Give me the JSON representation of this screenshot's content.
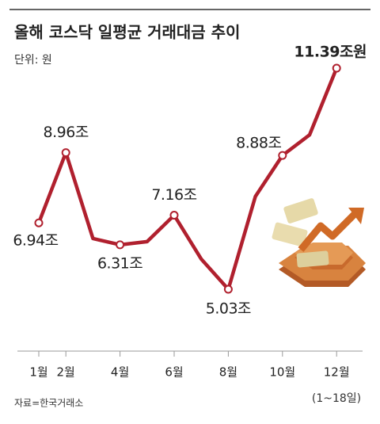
{
  "chart_data": {
    "type": "line",
    "title": "올해 코스닥 일평균 거래대금 추이",
    "subtitle": "단위: 원",
    "categories": [
      "1월",
      "2월",
      null,
      "4월",
      null,
      "6월",
      null,
      "8월",
      null,
      "10월",
      null,
      "12월"
    ],
    "series": [
      {
        "name": null,
        "color": "#b0202e",
        "values": [
          6.94,
          8.96,
          6.49,
          6.31,
          6.4,
          7.16,
          5.9,
          5.03,
          7.7,
          8.88,
          9.47,
          11.39
        ],
        "value_labels": [
          "6.94조",
          "8.96조",
          null,
          "6.31조",
          null,
          "7.16조",
          null,
          "5.03조",
          null,
          "8.88조",
          null,
          "11.39조원"
        ]
      }
    ],
    "annotation": "(1~18일)",
    "source": "자료=한국거래소"
  }
}
